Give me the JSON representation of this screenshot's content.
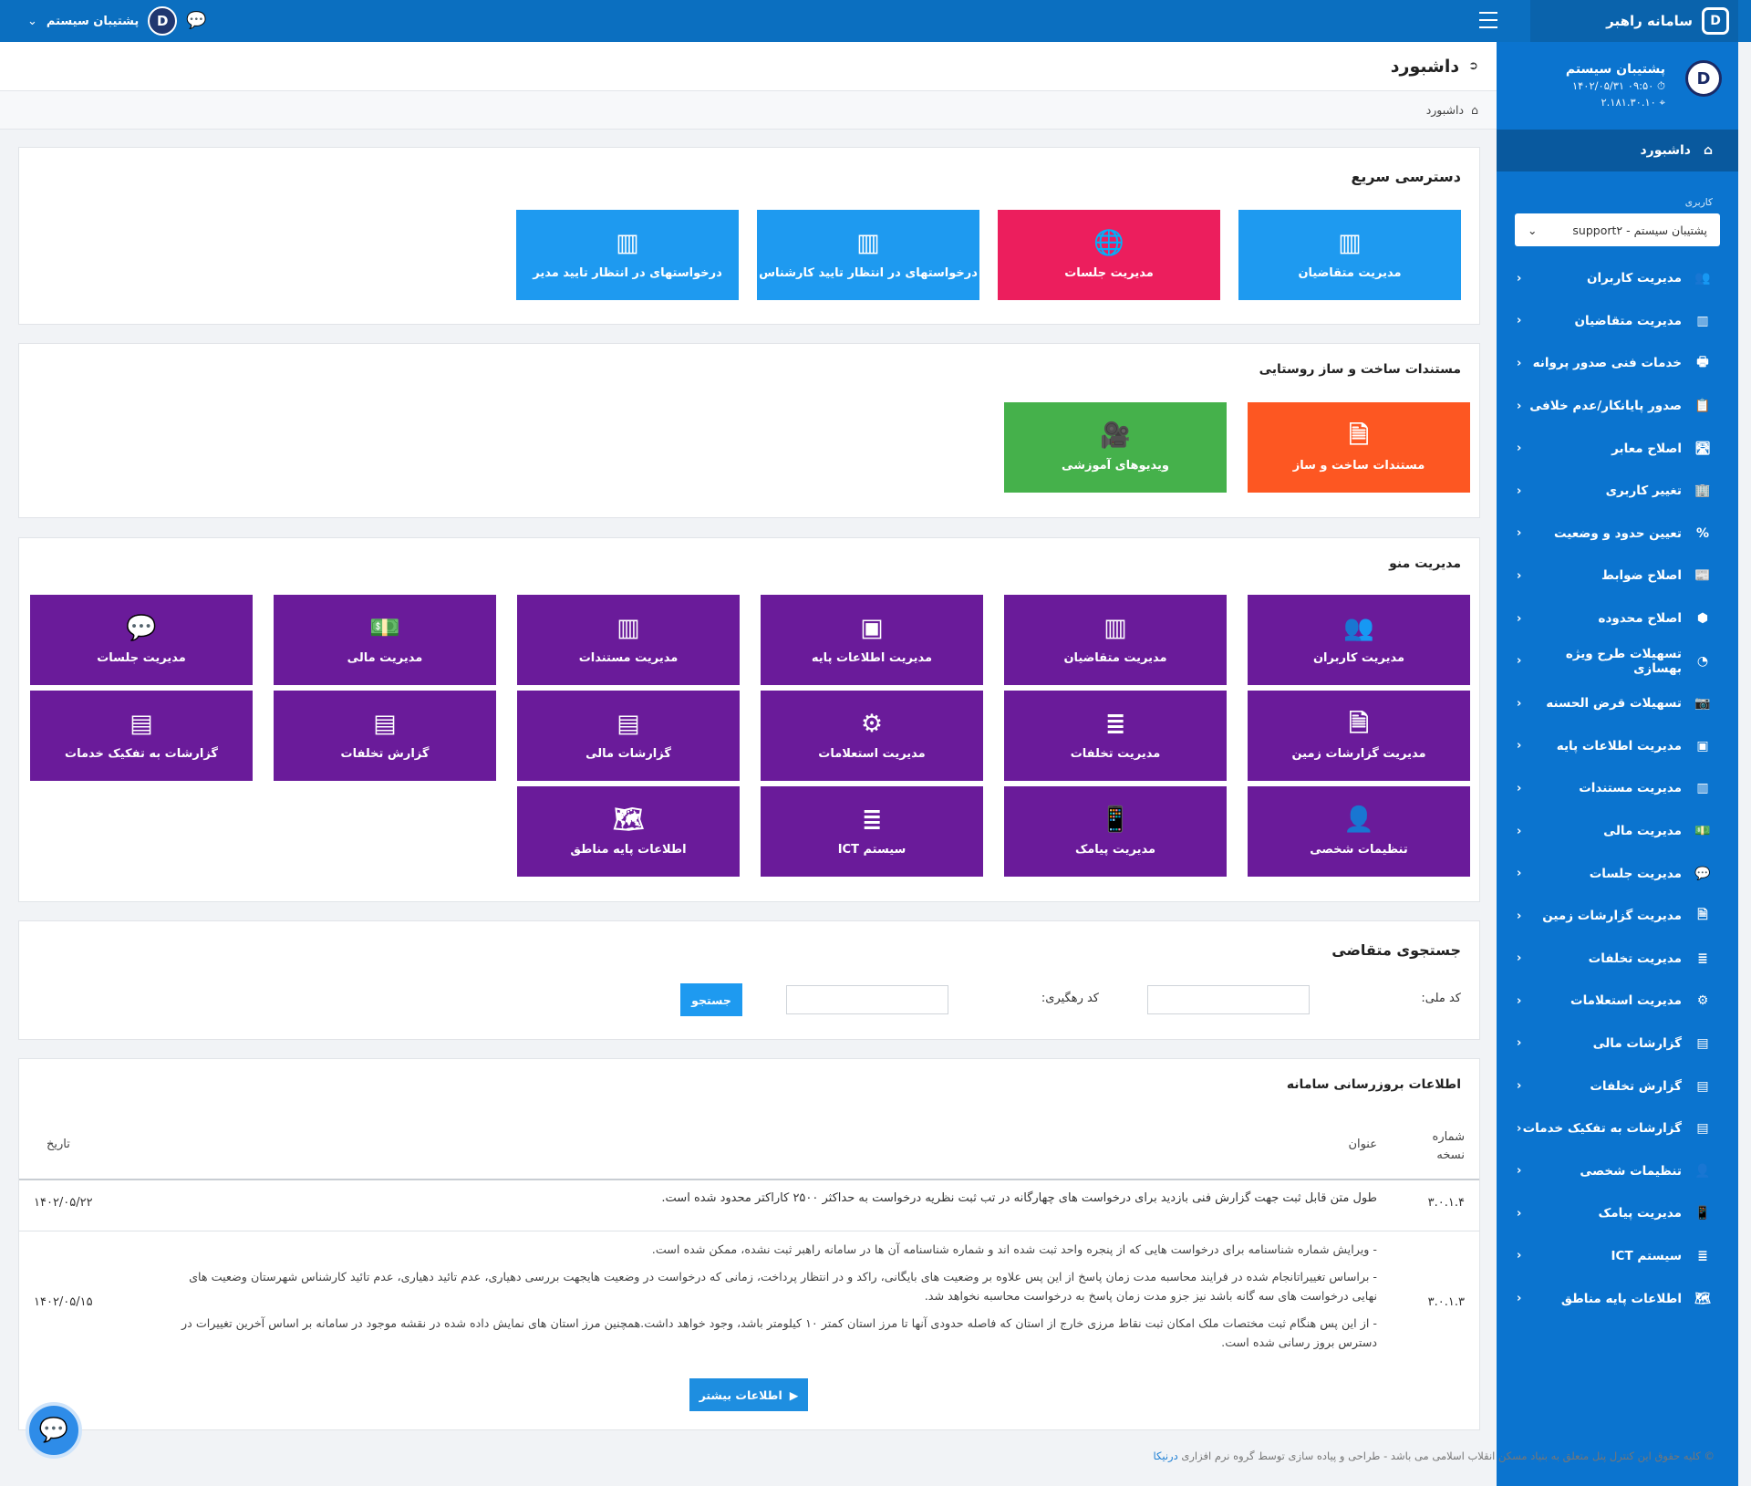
{
  "app": {
    "title": "سامانه راهبر",
    "logo_letter": "D"
  },
  "topbar": {
    "user_name": "پشتیبان سیستم",
    "chat_icon": "chat-bubbles-icon"
  },
  "profile": {
    "name": "پشتیبان سیستم",
    "datetime": "۰۹:۵۰ ۱۴۰۲/۰۵/۳۱",
    "ip": "۲.۱۸۱.۳۰.۱۰"
  },
  "sidebar": {
    "active_label": "داشبورد",
    "section_label": "کاربری",
    "select_value": "پشتیبان سیستم - support۲",
    "items": [
      {
        "label": "مدیریت کاربران",
        "icon": "👥"
      },
      {
        "label": "مدیریت متقاضیان",
        "icon": "▥"
      },
      {
        "label": "خدمات فنی صدور پروانه",
        "icon": "🖶"
      },
      {
        "label": "صدور پایانکار/عدم خلافی",
        "icon": "📋"
      },
      {
        "label": "اصلاح معابر",
        "icon": "🛣"
      },
      {
        "label": "تغییر کاربری",
        "icon": "🏢"
      },
      {
        "label": "تعیین حدود و وضعیت",
        "icon": "%"
      },
      {
        "label": "اصلاح ضوابط",
        "icon": "📰"
      },
      {
        "label": "اصلاح محدوده",
        "icon": "⬢"
      },
      {
        "label": "تسهیلات طرح ویژه بهسازی",
        "icon": "◔"
      },
      {
        "label": "تسهیلات قرض الحسنه",
        "icon": "📷"
      },
      {
        "label": "مدیریت اطلاعات پایه",
        "icon": "▣"
      },
      {
        "label": "مدیریت مستندات",
        "icon": "▥"
      },
      {
        "label": "مدیریت مالی",
        "icon": "💵"
      },
      {
        "label": "مدیریت جلسات",
        "icon": "💬"
      },
      {
        "label": "مدیریت گزارشات زمین",
        "icon": "🗎"
      },
      {
        "label": "مدیریت تخلفات",
        "icon": "≣"
      },
      {
        "label": "مدیریت استعلامات",
        "icon": "⚙"
      },
      {
        "label": "گزارشات مالی",
        "icon": "▤"
      },
      {
        "label": "گزارش تخلفات",
        "icon": "▤"
      },
      {
        "label": "گزارشات به تفکیک خدمات",
        "icon": "▤"
      },
      {
        "label": "تنظیمات شخصی",
        "icon": "👤"
      },
      {
        "label": "مدیریت پیامک",
        "icon": "📱"
      },
      {
        "label": "سیستم ICT",
        "icon": "≣"
      },
      {
        "label": "اطلاعات پایه مناطق",
        "icon": "🗺"
      }
    ]
  },
  "page": {
    "title": "داشبورد",
    "breadcrumb": "داشبورد"
  },
  "quick_access": {
    "title": "دسترسی سریع",
    "tiles": [
      {
        "label": "مدیریت متقاضیان",
        "icon": "▥"
      },
      {
        "label": "مدیریت جلسات",
        "icon": "🌐"
      },
      {
        "label": "درخواستهای در انتظار تایید کارشناس",
        "icon": "▥"
      },
      {
        "label": "درخواستهای در انتظار تایید مدیر",
        "icon": "▥"
      }
    ]
  },
  "rural_docs": {
    "title": "مستندات ساخت و ساز روستایی",
    "tiles": [
      {
        "label": "مستندات ساخت و ساز",
        "icon": "🗎"
      },
      {
        "label": "ویدیوهای آموزشی",
        "icon": "🎥"
      }
    ]
  },
  "menu_mgmt": {
    "title": "مدیریت منو",
    "tiles": [
      {
        "label": "مدیریت کاربران",
        "icon": "👥"
      },
      {
        "label": "مدیریت متقاضیان",
        "icon": "▥"
      },
      {
        "label": "مدیریت اطلاعات پایه",
        "icon": "▣"
      },
      {
        "label": "مدیریت مستندات",
        "icon": "▥"
      },
      {
        "label": "مدیریت مالی",
        "icon": "💵"
      },
      {
        "label": "مدیریت جلسات",
        "icon": "💬"
      },
      {
        "label": "مدیریت گزارشات زمین",
        "icon": "🗎"
      },
      {
        "label": "مدیریت تخلفات",
        "icon": "≣"
      },
      {
        "label": "مدیریت استعلامات",
        "icon": "⚙"
      },
      {
        "label": "گزارشات مالی",
        "icon": "▤"
      },
      {
        "label": "گزارش تخلفات",
        "icon": "▤"
      },
      {
        "label": "گزارشات به تفکیک خدمات",
        "icon": "▤"
      },
      {
        "label": "تنظیمات شخصی",
        "icon": "👤"
      },
      {
        "label": "مدیریت پیامک",
        "icon": "📱"
      },
      {
        "label": "سیستم ICT",
        "icon": "≣"
      },
      {
        "label": "اطلاعات پایه مناطق",
        "icon": "🗺"
      }
    ]
  },
  "search": {
    "title": "جستجوی متقاضی",
    "national_code_label": "کد ملی:",
    "tracking_code_label": "کد رهگیری:",
    "national_code_value": "",
    "tracking_code_value": "",
    "button_label": "جستجو"
  },
  "updates": {
    "title": "اطلاعات بروزرسانی سامانه",
    "col_version": "شماره نسخه",
    "col_title": "عنوان",
    "col_date": "تاریخ",
    "rows": [
      {
        "version": "۳.۰.۱.۴",
        "title": "طول متن قابل ثبت جهت گزارش فنی بازدید برای درخواست های چهارگانه در تب ثبت نظریه درخواست به حداکثر ۲۵۰۰ کاراکتر محدود شده است.",
        "date": "۱۴۰۲/۰۵/۲۲"
      },
      {
        "version": "۳.۰.۱.۳",
        "date": "۱۴۰۲/۰۵/۱۵",
        "note1": "- ویرایش شماره شناسنامه برای درخواست هایی که از پنجره واحد ثبت شده اند و شماره شناسنامه آن ها در سامانه راهبر ثبت نشده، ممکن شده است.",
        "note2": "- براساس تغییراتانجام شده در فرایند محاسبه مدت زمان پاسخ از این پس علاوه بر وضعیت های بایگانی، راکد و در انتظار پرداخت، زمانی که درخواست در وضعیت هایجهت بررسی دهیاری، عدم تائید دهیاری، عدم تائید کارشناس شهرستان وضعیت های نهایی درخواست های سه گانه باشد نیز جزو مدت زمان پاسخ به درخواست محاسبه نخواهد شد.",
        "note3": "- از این پس هنگام ثبت مختصات ملک امکان ثبت نقاط مرزی خارج از استان که فاصله حدودی آنها تا مرز استان کمتر ۱۰ کیلومتر باشد، وجود خواهد داشت.همچنین مرز استان های نمایش داده شده در نقشه موجود در سامانه بر اساس آخرین تغییرات در دسترس بروز رسانی شده است."
      }
    ],
    "more_button": "اطلاعات بیشتر"
  },
  "footer": {
    "text": "© کلیه حقوق این کنترل پنل متعلق به بنیاد مسکن انقلاب اسلامی می باشد - طراحی و پیاده سازی توسط گروه نرم افزاری",
    "link": "درنیکا"
  },
  "colors": {
    "topbar": "#0b6fc0",
    "sidebar": "#0b74cf",
    "tile_blue": "#1e9af0",
    "tile_pink": "#ec1e5d",
    "tile_orange": "#fd5722",
    "tile_green": "#45b14b",
    "tile_purple": "#6a1b9a"
  }
}
